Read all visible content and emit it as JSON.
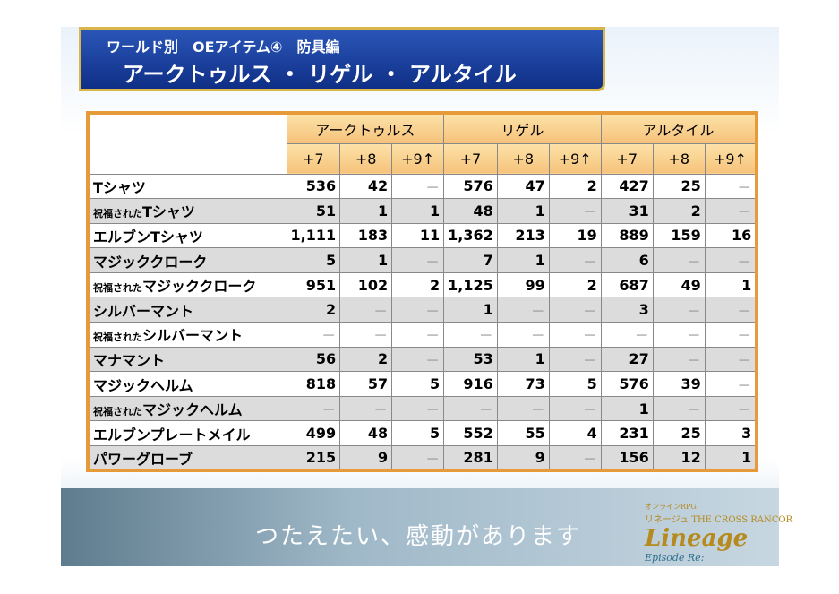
{
  "header": {
    "line1": "ワールド別　OEアイテム④　防具編",
    "line2": "アークトゥルス ・ リゲル ・ アルタイル"
  },
  "table": {
    "groups": [
      {
        "name": "アークトゥルス",
        "columns": [
          "+7",
          "+8",
          "+9↑"
        ]
      },
      {
        "name": "リゲル",
        "columns": [
          "+7",
          "+8",
          "+9↑"
        ]
      },
      {
        "name": "アルタイル",
        "columns": [
          "+7",
          "+8",
          "+9↑"
        ]
      }
    ],
    "rows": [
      {
        "name": "Tシャツ",
        "cells": [
          "536",
          "42",
          "－",
          "576",
          "47",
          "2",
          "427",
          "25",
          "－"
        ]
      },
      {
        "prefix": "祝福された",
        "name": "Tシャツ",
        "cells": [
          "51",
          "1",
          "1",
          "48",
          "1",
          "－",
          "31",
          "2",
          "－"
        ]
      },
      {
        "name": "エルブンTシャツ",
        "cells": [
          "1,111",
          "183",
          "11",
          "1,362",
          "213",
          "19",
          "889",
          "159",
          "16"
        ]
      },
      {
        "name": "マジッククローク",
        "cells": [
          "5",
          "1",
          "－",
          "7",
          "1",
          "－",
          "6",
          "－",
          "－"
        ]
      },
      {
        "prefix": "祝福された",
        "name": "マジッククローク",
        "cells": [
          "951",
          "102",
          "2",
          "1,125",
          "99",
          "2",
          "687",
          "49",
          "1"
        ]
      },
      {
        "name": "シルバーマント",
        "cells": [
          "2",
          "－",
          "－",
          "1",
          "－",
          "－",
          "3",
          "－",
          "－"
        ]
      },
      {
        "prefix": "祝福された",
        "name": "シルバーマント",
        "cells": [
          "－",
          "－",
          "－",
          "－",
          "－",
          "－",
          "－",
          "－",
          "－"
        ]
      },
      {
        "name": "マナマント",
        "cells": [
          "56",
          "2",
          "－",
          "53",
          "1",
          "－",
          "27",
          "－",
          "－"
        ]
      },
      {
        "name": "マジックヘルム",
        "cells": [
          "818",
          "57",
          "5",
          "916",
          "73",
          "5",
          "576",
          "39",
          "－"
        ]
      },
      {
        "prefix": "祝福された",
        "name": "マジックヘルム",
        "cells": [
          "－",
          "－",
          "－",
          "－",
          "－",
          "－",
          "1",
          "－",
          "－"
        ]
      },
      {
        "name": "エルブンプレートメイル",
        "cells": [
          "499",
          "48",
          "5",
          "552",
          "55",
          "4",
          "231",
          "25",
          "3"
        ]
      },
      {
        "name": "パワーグローブ",
        "cells": [
          "215",
          "9",
          "－",
          "281",
          "9",
          "－",
          "156",
          "12",
          "1"
        ]
      }
    ]
  },
  "footer": {
    "slogan": "つたえたい、感動があります",
    "logo_small": "オンラインRPG",
    "logo_sub": "リネージュ THE CROSS RANCOR",
    "logo": "Lineage",
    "episode": "Episode Re:"
  }
}
